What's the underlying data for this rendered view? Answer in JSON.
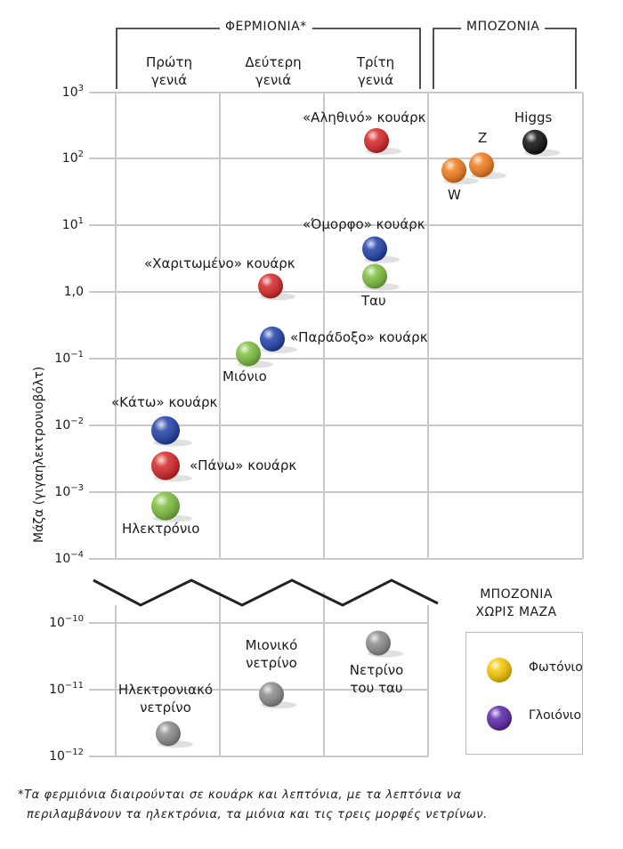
{
  "chart_data": {
    "type": "scatter",
    "title": "",
    "ylabel": "Μάζα (γιγαηλεκτρονιοβόλτ)",
    "yscale": "log",
    "groups": {
      "fermions": "ΦΕΡΜΙΟΝΙΑ*",
      "bosons": "ΜΠΟΖΟΝΙΑ",
      "generations": [
        {
          "line1": "Πρώτη",
          "line2": "γενιά"
        },
        {
          "line1": "Δεύτερη",
          "line2": "γενιά"
        },
        {
          "line1": "Τρίτη",
          "line2": "γενιά"
        }
      ]
    },
    "upper_ticks": [
      {
        "base": "10",
        "exp": "3"
      },
      {
        "base": "10",
        "exp": "2"
      },
      {
        "base": "10",
        "exp": "1"
      },
      {
        "base": "1,0",
        "exp": ""
      },
      {
        "base": "10",
        "exp": "−1"
      },
      {
        "base": "10",
        "exp": "−2"
      },
      {
        "base": "10",
        "exp": "−3"
      },
      {
        "base": "10",
        "exp": "−4"
      }
    ],
    "lower_ticks": [
      {
        "base": "10",
        "exp": "−10"
      },
      {
        "base": "10",
        "exp": "−11"
      },
      {
        "base": "10",
        "exp": "−12"
      }
    ],
    "ylim_upper": [
      0.0001,
      1000
    ],
    "ylim_lower": [
      1e-12,
      1e-10
    ],
    "massless_label": {
      "line1": "ΜΠΟΖΟΝΙΑ",
      "line2": "ΧΩΡΙΣ ΜΑΖΑ"
    },
    "particles": [
      {
        "label": "«Κάτω» κουάρκ",
        "column": 1,
        "mass_gev": 0.0085,
        "color": "#1f3fa8"
      },
      {
        "label": "«Πάνω» κουάρκ",
        "column": 1,
        "mass_gev": 0.0025,
        "color": "#d42424"
      },
      {
        "label": "Ηλεκτρόνιο",
        "column": 1,
        "mass_gev": 0.00062,
        "color": "#7cbd3c"
      },
      {
        "label": "«Χαριτωμένο» κουάρκ",
        "column": 2,
        "mass_gev": 1.25,
        "color": "#d42424"
      },
      {
        "label": "«Παράδοξο» κουάρκ",
        "column": 2,
        "mass_gev": 0.2,
        "color": "#1f3fa8"
      },
      {
        "label": "Μιόνιο",
        "column": 2,
        "mass_gev": 0.12,
        "color": "#7cbd3c"
      },
      {
        "label": "«Αληθινό» κουάρκ",
        "column": 3,
        "mass_gev": 190,
        "color": "#d42424"
      },
      {
        "label": "«Όμορφο» κουάρκ",
        "column": 3,
        "mass_gev": 4.5,
        "color": "#1f3fa8"
      },
      {
        "label": "Ταυ",
        "column": 3,
        "mass_gev": 1.75,
        "color": "#7cbd3c"
      },
      {
        "label": "W",
        "column": 4,
        "mass_gev": 68,
        "color": "#f07a1a"
      },
      {
        "label": "Z",
        "column": 4,
        "mass_gev": 82,
        "color": "#f07a1a"
      },
      {
        "label": "Higgs",
        "column": 4,
        "mass_gev": 180,
        "color": "#0d0d0d"
      }
    ],
    "neutrinos": [
      {
        "line1": "Ηλεκτρονιακό",
        "line2": "νετρίνο",
        "column": 1,
        "mass_gev": 2.2e-12,
        "color": "#8a8a8a"
      },
      {
        "line1": "Μιονικό",
        "line2": "νετρίνο",
        "column": 2,
        "mass_gev": 8.5e-12,
        "color": "#8a8a8a"
      },
      {
        "line1": "Νετρίνο",
        "line2": "του ταυ",
        "column": 3,
        "mass_gev": 5e-11,
        "color": "#8a8a8a"
      }
    ],
    "legend": [
      {
        "label": "Φωτόνιο",
        "color": "#f5c400"
      },
      {
        "label": "Γλοιόνιο",
        "color": "#5a23a8"
      }
    ]
  },
  "footnote": {
    "line1": "*Τα φερμιόνια διαιρούνται σε κουάρκ και λεπτόνια, με τα λεπτόνια να",
    "line2": "περιλαμβάνουν τα ηλεκτρόνια, τα μιόνια και τις τρεις μορφές νετρίνων."
  }
}
